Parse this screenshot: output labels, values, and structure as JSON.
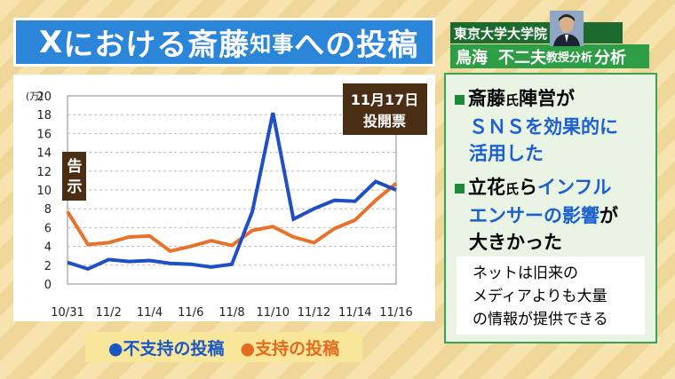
{
  "title": {
    "x": "X",
    "main1": "における斎藤",
    "small": "知事",
    "main2": "への投稿"
  },
  "chart_data": {
    "type": "line",
    "title": "",
    "ylabel": "(万)",
    "ylim": [
      0,
      20
    ],
    "yticks": [
      0,
      2,
      4,
      6,
      8,
      10,
      12,
      14,
      16,
      18,
      20
    ],
    "x": [
      "10/31",
      "11/1",
      "11/2",
      "11/3",
      "11/4",
      "11/5",
      "11/6",
      "11/7",
      "11/8",
      "11/9",
      "11/10",
      "11/11",
      "11/12",
      "11/13",
      "11/14",
      "11/15",
      "11/16"
    ],
    "xtick_labels": [
      "10/31",
      "11/2",
      "11/4",
      "11/6",
      "11/8",
      "11/10",
      "11/12",
      "11/14",
      "11/16"
    ],
    "series": [
      {
        "name": "不支持の投稿",
        "color": "#1f4fc4",
        "values": [
          2.3,
          1.6,
          2.6,
          2.4,
          2.5,
          2.2,
          2.1,
          1.8,
          2.1,
          7.7,
          18.2,
          6.9,
          8.0,
          8.9,
          8.8,
          10.9,
          10.0
        ]
      },
      {
        "name": "支持の投稿",
        "color": "#e8722a",
        "values": [
          7.7,
          4.2,
          4.4,
          5.0,
          5.1,
          3.5,
          4.0,
          4.6,
          4.1,
          5.7,
          6.1,
          5.0,
          4.4,
          5.9,
          6.8,
          8.9,
          10.7
        ]
      }
    ],
    "annotations": {
      "announce": "告示",
      "election_date": "11月17日",
      "election_label": "投開票"
    }
  },
  "legend": {
    "blue": "●不支持の投稿",
    "orange": "●支持の投稿"
  },
  "professor": {
    "affiliation": "東京大学大学院",
    "name": "鳥海",
    "name2": "不二夫",
    "role": "教授分析"
  },
  "points": [
    {
      "a": "斎藤",
      "a_small": "氏",
      "b": "陣営が",
      "line2": "ＳＮＳを効果的に",
      "line3": "活用した"
    },
    {
      "a": "立花",
      "a_small": "氏",
      "b": "ら",
      "hl1": "インフル",
      "line2hl": "エンサーの影響",
      "line2": "が",
      "line3": "大きかった"
    }
  ],
  "note": [
    "ネットは旧来の",
    "メディアよりも大量",
    "の情報が提供できる"
  ],
  "colors": {
    "title_bg": "#2b86d9",
    "panel_green": "#2e9e46",
    "highlight_blue": "#1b5fd1",
    "blue_series": "#1f4fc4",
    "orange_series": "#e8722a"
  }
}
